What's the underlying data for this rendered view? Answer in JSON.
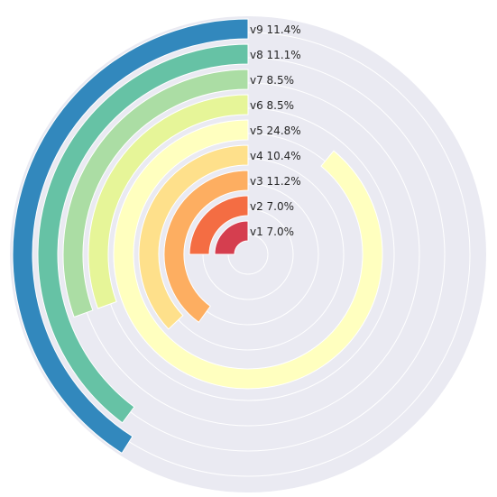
{
  "chart_data": {
    "type": "radial-bar",
    "title": "",
    "series": [
      {
        "label": "v1 7.0%",
        "value": 7.0,
        "max_fraction": 0.25,
        "color": "#d53e4f"
      },
      {
        "label": "v2 7.0%",
        "value": 7.0,
        "max_fraction": 0.25,
        "color": "#f46d43"
      },
      {
        "label": "v3 11.2%",
        "value": 11.2,
        "max_fraction": 0.4,
        "color": "#fdae61"
      },
      {
        "label": "v4 10.4%",
        "value": 10.4,
        "max_fraction": 0.37,
        "color": "#fee08b"
      },
      {
        "label": "v5 24.8%",
        "value": 24.8,
        "max_fraction": 0.89,
        "color": "#ffffbf"
      },
      {
        "label": "v6 8.5%",
        "value": 8.5,
        "max_fraction": 0.305,
        "color": "#e6f598"
      },
      {
        "label": "v7 8.5%",
        "value": 8.5,
        "max_fraction": 0.305,
        "color": "#abdda4"
      },
      {
        "label": "v8 11.1%",
        "value": 11.1,
        "max_fraction": 0.398,
        "color": "#66c2a5"
      },
      {
        "label": "v9 11.4%",
        "value": 11.4,
        "max_fraction": 0.41,
        "color": "#3288bd"
      }
    ],
    "background_color": "#eaeaf2",
    "grid": true,
    "grid_color": "#ffffff"
  }
}
